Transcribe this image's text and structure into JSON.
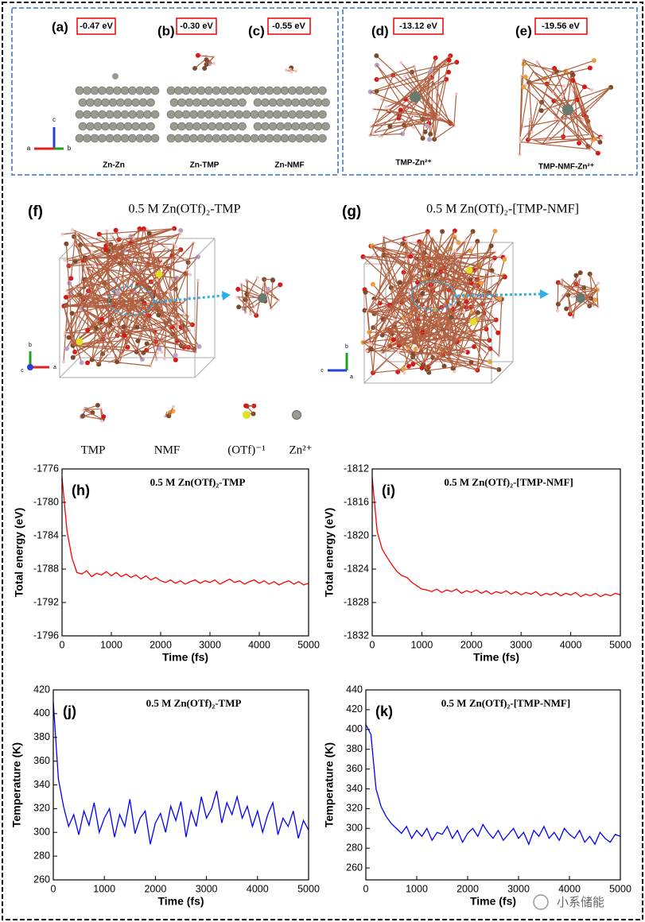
{
  "top": {
    "a": {
      "label": "(a)",
      "energy": "-0.47 eV",
      "name": "Zn-Zn"
    },
    "b": {
      "label": "(b)",
      "energy": "-0.30 eV",
      "name": "Zn-TMP"
    },
    "c": {
      "label": "(c)",
      "energy": "-0.55 eV",
      "name": "Zn-NMF"
    },
    "d": {
      "label": "(d)",
      "energy": "-13.12 eV",
      "name": "TMP-Zn²⁺"
    },
    "e": {
      "label": "(e)",
      "energy": "-19.56 eV",
      "name": "TMP-NMF-Zn²⁺"
    },
    "axes": [
      "c",
      "a",
      "b"
    ]
  },
  "md": {
    "f": {
      "label": "(f)",
      "title": "0.5 M Zn(OTf)₂-TMP",
      "axes": [
        "b",
        "c",
        "a"
      ]
    },
    "g": {
      "label": "(g)",
      "title": "0.5 M Zn(OTf)₂-[TMP-NMF]",
      "axes": [
        "b",
        "c",
        "a"
      ]
    },
    "legend": [
      "TMP",
      "NMF",
      "(OTf)⁻¹",
      "Zn²⁺"
    ]
  },
  "watermark": "小系储能",
  "chart_data": [
    {
      "type": "line",
      "panel": "(h)",
      "title": "0.5 M Zn(OTf)₂-TMP",
      "xlabel": "Time (fs)",
      "ylabel": "Total energy (eV)",
      "color": "#ff0000",
      "x": [
        0,
        100,
        200,
        300,
        400,
        500,
        600,
        700,
        800,
        900,
        1000,
        1100,
        1200,
        1300,
        1400,
        1500,
        1600,
        1700,
        1800,
        1900,
        2000,
        2100,
        2200,
        2300,
        2400,
        2500,
        2600,
        2700,
        2800,
        2900,
        3000,
        3100,
        3200,
        3300,
        3400,
        3500,
        3600,
        3700,
        3800,
        3900,
        4000,
        4100,
        4200,
        4300,
        4400,
        4500,
        4600,
        4700,
        4800,
        4900,
        5000
      ],
      "values": [
        -1777.0,
        -1783.4,
        -1786.6,
        -1788.4,
        -1788.6,
        -1788.2,
        -1788.9,
        -1788.5,
        -1788.7,
        -1788.3,
        -1788.8,
        -1788.4,
        -1788.9,
        -1788.6,
        -1789.0,
        -1788.7,
        -1789.2,
        -1788.8,
        -1789.3,
        -1789.0,
        -1789.4,
        -1789.6,
        -1789.3,
        -1789.7,
        -1789.4,
        -1789.8,
        -1789.5,
        -1789.3,
        -1789.7,
        -1789.4,
        -1789.6,
        -1789.3,
        -1789.8,
        -1789.5,
        -1789.2,
        -1789.6,
        -1789.4,
        -1789.8,
        -1789.5,
        -1789.3,
        -1789.7,
        -1789.4,
        -1789.8,
        -1789.5,
        -1789.9,
        -1789.6,
        -1789.4,
        -1789.8,
        -1789.5,
        -1789.9,
        -1789.7
      ],
      "xlim": [
        0,
        5000
      ],
      "xticks": [
        0,
        1000,
        2000,
        3000,
        4000,
        5000
      ],
      "ylim": [
        -1796,
        -1776
      ],
      "yticks": [
        -1796,
        -1792,
        -1788,
        -1784,
        -1780,
        -1776
      ]
    },
    {
      "type": "line",
      "panel": "(i)",
      "title": "0.5 M Zn(OTf)₂-[TMP-NMF]",
      "xlabel": "Time (fs)",
      "ylabel": "Total energy (eV)",
      "color": "#ff0000",
      "x": [
        0,
        100,
        200,
        300,
        400,
        500,
        600,
        700,
        800,
        900,
        1000,
        1100,
        1200,
        1300,
        1400,
        1500,
        1600,
        1700,
        1800,
        1900,
        2000,
        2100,
        2200,
        2300,
        2400,
        2500,
        2600,
        2700,
        2800,
        2900,
        3000,
        3100,
        3200,
        3300,
        3400,
        3500,
        3600,
        3700,
        3800,
        3900,
        4000,
        4100,
        4200,
        4300,
        4400,
        4500,
        4600,
        4700,
        4800,
        4900,
        5000
      ],
      "values": [
        -1813.0,
        -1819.5,
        -1821.6,
        -1822.6,
        -1823.5,
        -1824.3,
        -1824.8,
        -1825.0,
        -1825.6,
        -1826.0,
        -1826.4,
        -1826.5,
        -1826.7,
        -1826.4,
        -1826.8,
        -1826.5,
        -1826.7,
        -1826.4,
        -1826.9,
        -1826.6,
        -1826.8,
        -1826.5,
        -1826.9,
        -1826.6,
        -1827.0,
        -1826.7,
        -1826.9,
        -1826.6,
        -1827.0,
        -1826.7,
        -1827.1,
        -1826.8,
        -1827.0,
        -1826.7,
        -1827.2,
        -1826.9,
        -1827.1,
        -1826.8,
        -1827.2,
        -1826.9,
        -1827.1,
        -1826.8,
        -1827.3,
        -1827.0,
        -1827.2,
        -1826.9,
        -1827.3,
        -1827.0,
        -1827.2,
        -1826.9,
        -1827.1
      ],
      "xlim": [
        0,
        5000
      ],
      "xticks": [
        0,
        1000,
        2000,
        3000,
        4000,
        5000
      ],
      "ylim": [
        -1832,
        -1812
      ],
      "yticks": [
        -1832,
        -1828,
        -1824,
        -1820,
        -1816,
        -1812
      ]
    },
    {
      "type": "line",
      "panel": "(j)",
      "title": "0.5 M Zn(OTf)₂-TMP",
      "xlabel": "Time (fs)",
      "ylabel": "Temperature (K)",
      "color": "#0000ff",
      "x": [
        0,
        100,
        200,
        300,
        400,
        500,
        600,
        700,
        800,
        900,
        1000,
        1100,
        1200,
        1300,
        1400,
        1500,
        1600,
        1700,
        1800,
        1900,
        2000,
        2100,
        2200,
        2300,
        2400,
        2500,
        2600,
        2700,
        2800,
        2900,
        3000,
        3100,
        3200,
        3300,
        3400,
        3500,
        3600,
        3700,
        3800,
        3900,
        4000,
        4100,
        4200,
        4300,
        4400,
        4500,
        4600,
        4700,
        4800,
        4900,
        5000
      ],
      "values": [
        410,
        345,
        322,
        305,
        315,
        298,
        318,
        306,
        325,
        300,
        312,
        320,
        296,
        315,
        305,
        328,
        299,
        312,
        318,
        290,
        308,
        316,
        300,
        322,
        310,
        326,
        296,
        318,
        305,
        330,
        312,
        320,
        335,
        308,
        325,
        315,
        330,
        312,
        322,
        305,
        318,
        300,
        315,
        325,
        298,
        312,
        305,
        318,
        295,
        310,
        302
      ],
      "xlim": [
        0,
        5000
      ],
      "xticks": [
        0,
        1000,
        2000,
        3000,
        4000,
        5000
      ],
      "ylim": [
        260,
        420
      ],
      "yticks": [
        260,
        280,
        300,
        320,
        340,
        360,
        380,
        400,
        420
      ]
    },
    {
      "type": "line",
      "panel": "(k)",
      "title": "0.5 M Zn(OTf)₂-[TMP-NMF]",
      "xlabel": "Time (fs)",
      "ylabel": "Temperature (K)",
      "color": "#0000ff",
      "x": [
        0,
        100,
        200,
        300,
        400,
        500,
        600,
        700,
        800,
        900,
        1000,
        1100,
        1200,
        1300,
        1400,
        1500,
        1600,
        1700,
        1800,
        1900,
        2000,
        2100,
        2200,
        2300,
        2400,
        2500,
        2600,
        2700,
        2800,
        2900,
        3000,
        3100,
        3200,
        3300,
        3400,
        3500,
        3600,
        3700,
        3800,
        3900,
        4000,
        4100,
        4200,
        4300,
        4400,
        4500,
        4600,
        4700,
        4800,
        4900,
        5000
      ],
      "values": [
        405,
        395,
        340,
        322,
        312,
        305,
        300,
        295,
        302,
        290,
        298,
        292,
        300,
        288,
        296,
        294,
        302,
        290,
        298,
        286,
        295,
        300,
        292,
        304,
        296,
        290,
        298,
        288,
        294,
        300,
        290,
        296,
        284,
        298,
        292,
        302,
        290,
        296,
        288,
        300,
        294,
        290,
        298,
        286,
        292,
        284,
        296,
        290,
        286,
        294,
        292
      ],
      "xlim": [
        0,
        5000
      ],
      "xticks": [
        0,
        1000,
        2000,
        3000,
        4000,
        5000
      ],
      "ylim": [
        248,
        440
      ],
      "yticks": [
        260,
        280,
        300,
        320,
        340,
        360,
        380,
        400,
        420,
        440
      ]
    }
  ]
}
